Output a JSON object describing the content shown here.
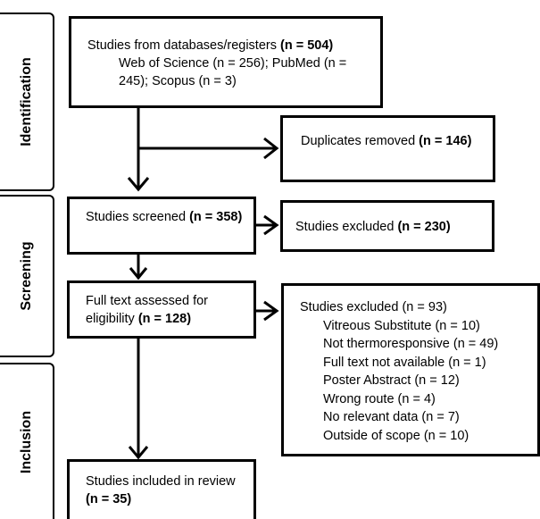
{
  "phases": {
    "identification": "Identification",
    "screening": "Screening",
    "inclusion": "Inclusion"
  },
  "identification_box": {
    "line1": "Studies from databases/registers ",
    "line1_bold": "(n = 504)",
    "detail": "Web of Science (n = 256); PubMed (n = 245); Scopus (n = 3)"
  },
  "duplicates_box": {
    "text": "Duplicates removed ",
    "bold": "(n = 146)"
  },
  "screened_box": {
    "text": "Studies screened ",
    "bold": "(n = 358)"
  },
  "excluded_box_1": {
    "text": "Studies excluded ",
    "bold": "(n = 230)"
  },
  "fulltext_box": {
    "text": "Full text assessed for eligibility ",
    "bold": "(n = 128)"
  },
  "excluded_box_2": {
    "title": "Studies excluded (n = 93)",
    "reasons": [
      "Vitreous Substitute (n = 10)",
      "Not thermoresponsive (n = 49)",
      "Full text not available (n = 1)",
      "Poster Abstract (n = 12)",
      "Wrong route  (n = 4)",
      "No relevant data (n = 7)",
      "Outside of scope  (n = 10)"
    ]
  },
  "included_box": {
    "text": "Studies included in review ",
    "bold": "(n = 35)"
  }
}
